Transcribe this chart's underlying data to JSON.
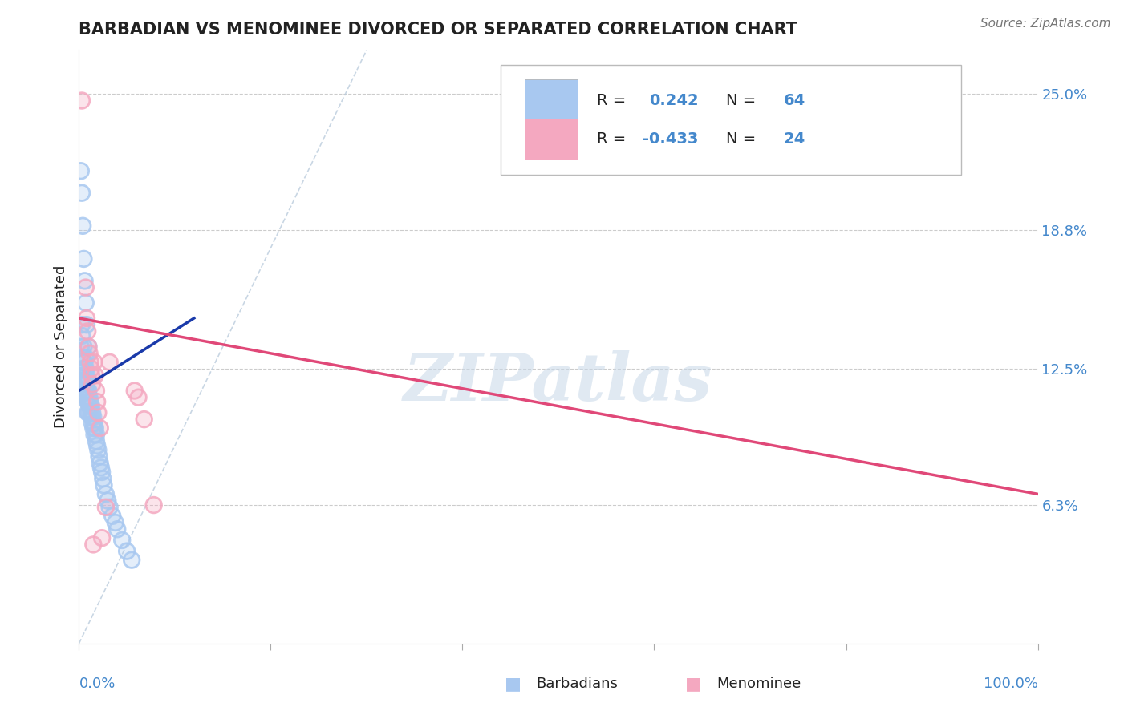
{
  "title": "BARBADIAN VS MENOMINEE DIVORCED OR SEPARATED CORRELATION CHART",
  "source": "Source: ZipAtlas.com",
  "ylabel": "Divorced or Separated",
  "y_ticks": [
    0.063,
    0.125,
    0.188,
    0.25
  ],
  "y_tick_labels": [
    "6.3%",
    "12.5%",
    "18.8%",
    "25.0%"
  ],
  "x_range": [
    0.0,
    1.0
  ],
  "y_range": [
    0.0,
    0.27
  ],
  "r_barbadian": 0.242,
  "n_barbadian": 64,
  "r_menominee": -0.433,
  "n_menominee": 24,
  "barbadian_color": "#A8C8F0",
  "menominee_color": "#F4A8C0",
  "barbadian_line_color": "#1A3AAA",
  "menominee_line_color": "#E04878",
  "diagonal_color": "#BBCCDD",
  "watermark": "ZIPatlas",
  "watermark_color": "#C8D8E8",
  "label_color": "#4488CC",
  "text_color": "#222222",
  "grid_color": "#CCCCCC",
  "spine_color": "#CCCCCC",
  "barbadian_x": [
    0.002,
    0.003,
    0.003,
    0.004,
    0.004,
    0.005,
    0.005,
    0.005,
    0.006,
    0.006,
    0.007,
    0.007,
    0.007,
    0.007,
    0.008,
    0.008,
    0.008,
    0.009,
    0.009,
    0.009,
    0.009,
    0.01,
    0.01,
    0.01,
    0.011,
    0.011,
    0.012,
    0.012,
    0.013,
    0.013,
    0.014,
    0.014,
    0.015,
    0.015,
    0.016,
    0.016,
    0.017,
    0.018,
    0.018,
    0.019,
    0.02,
    0.021,
    0.022,
    0.023,
    0.024,
    0.025,
    0.026,
    0.028,
    0.03,
    0.032,
    0.035,
    0.038,
    0.04,
    0.045,
    0.05,
    0.055,
    0.002,
    0.003,
    0.004,
    0.005,
    0.006,
    0.007,
    0.008,
    0.01
  ],
  "barbadian_y": [
    0.135,
    0.14,
    0.145,
    0.13,
    0.125,
    0.135,
    0.128,
    0.122,
    0.128,
    0.12,
    0.13,
    0.125,
    0.12,
    0.115,
    0.122,
    0.118,
    0.112,
    0.12,
    0.115,
    0.11,
    0.105,
    0.115,
    0.11,
    0.105,
    0.112,
    0.108,
    0.11,
    0.105,
    0.108,
    0.103,
    0.105,
    0.1,
    0.103,
    0.098,
    0.1,
    0.095,
    0.098,
    0.095,
    0.092,
    0.09,
    0.088,
    0.085,
    0.082,
    0.08,
    0.078,
    0.075,
    0.072,
    0.068,
    0.065,
    0.062,
    0.058,
    0.055,
    0.052,
    0.047,
    0.042,
    0.038,
    0.215,
    0.205,
    0.19,
    0.175,
    0.165,
    0.155,
    0.145,
    0.135
  ],
  "menominee_x": [
    0.003,
    0.007,
    0.008,
    0.009,
    0.01,
    0.011,
    0.012,
    0.013,
    0.013,
    0.014,
    0.015,
    0.016,
    0.017,
    0.018,
    0.019,
    0.02,
    0.022,
    0.024,
    0.028,
    0.032,
    0.058,
    0.062,
    0.068,
    0.078
  ],
  "menominee_y": [
    0.247,
    0.162,
    0.148,
    0.142,
    0.135,
    0.132,
    0.128,
    0.125,
    0.122,
    0.118,
    0.045,
    0.128,
    0.122,
    0.115,
    0.11,
    0.105,
    0.098,
    0.048,
    0.062,
    0.128,
    0.115,
    0.112,
    0.102,
    0.063
  ],
  "barb_trendline_x": [
    0.0,
    0.12
  ],
  "meno_trendline_x": [
    0.0,
    1.0
  ],
  "barb_trendline_y": [
    0.115,
    0.148
  ],
  "meno_trendline_y": [
    0.148,
    0.068
  ]
}
